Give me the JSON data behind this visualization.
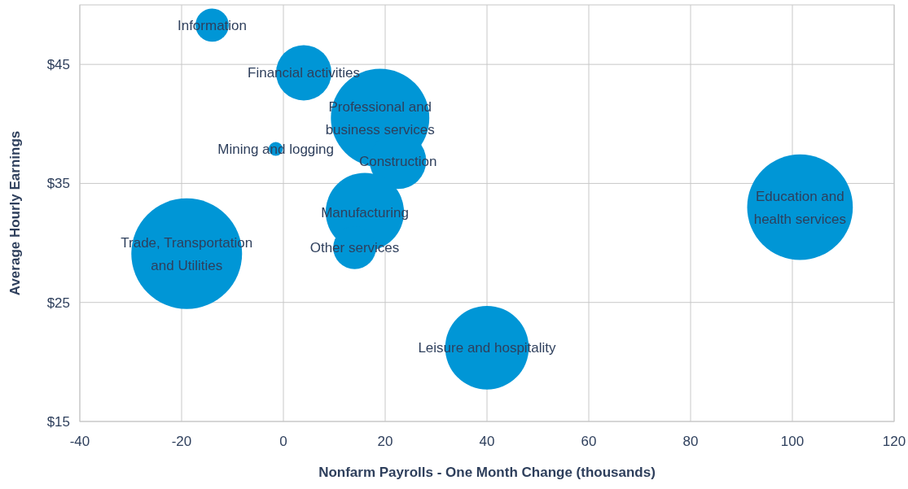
{
  "chart_data": {
    "type": "bubble",
    "xlabel": "Nonfarm Payrolls - One Month Change (thousands)",
    "ylabel": "Average Hourly Earnings",
    "series": [
      {
        "name": "Information",
        "color": "#0096d6",
        "x": [
          -14
        ],
        "values": [
          48.3
        ],
        "sizes": [
          0.09
        ]
      },
      {
        "name": "Financial activities",
        "color": "#0096d6",
        "x": [
          4
        ],
        "values": [
          44.3
        ],
        "sizes": [
          0.25
        ]
      },
      {
        "name": "Professional and business services",
        "color": "#0096d6",
        "x": [
          19
        ],
        "values": [
          40.5
        ],
        "sizes": [
          0.79
        ]
      },
      {
        "name": "Mining and logging",
        "color": "#0096d6",
        "x": [
          -1.5
        ],
        "values": [
          37.9
        ],
        "sizes": [
          0.016
        ]
      },
      {
        "name": "Construction",
        "color": "#0096d6",
        "x": [
          22.5
        ],
        "values": [
          36.9
        ],
        "sizes": [
          0.26
        ]
      },
      {
        "name": "Manufacturing",
        "color": "#0096d6",
        "x": [
          16
        ],
        "values": [
          32.6
        ],
        "sizes": [
          0.5
        ]
      },
      {
        "name": "Other services",
        "color": "#0096d6",
        "x": [
          14
        ],
        "values": [
          29.6
        ],
        "sizes": [
          0.15
        ]
      },
      {
        "name": "Trade, Transportation and Utilities",
        "color": "#0096d6",
        "x": [
          -19
        ],
        "values": [
          29.1
        ],
        "sizes": [
          1
        ]
      },
      {
        "name": "Education and health services",
        "color": "#0096d6",
        "x": [
          101.5
        ],
        "values": [
          33
        ],
        "sizes": [
          0.91
        ]
      },
      {
        "name": "Leisure and hospitality",
        "color": "#0096d6",
        "x": [
          40
        ],
        "values": [
          21.2
        ],
        "sizes": [
          0.57
        ]
      }
    ],
    "xlim": [
      -40,
      120
    ],
    "xticks": [
      -40,
      -20,
      0,
      20,
      40,
      60,
      80,
      100,
      120
    ],
    "ylim": [
      15,
      50
    ],
    "yticks": [
      {
        "value": 15,
        "label": "$15"
      },
      {
        "value": 25,
        "label": "$25"
      },
      {
        "value": 35,
        "label": "$35"
      },
      {
        "value": 45,
        "label": "$45"
      }
    ],
    "grid": true
  }
}
